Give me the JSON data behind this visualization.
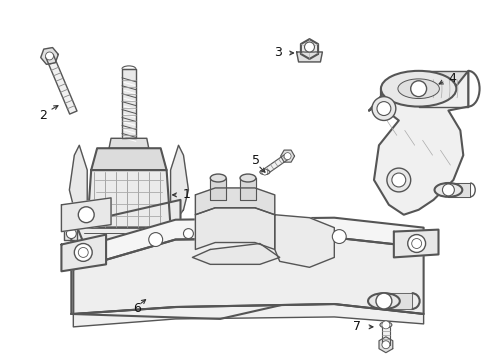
{
  "bg_color": "#ffffff",
  "line_color": "#555555",
  "label_color": "#111111",
  "lw": 1.0,
  "lw_thick": 1.5,
  "figsize": [
    4.9,
    3.6
  ],
  "dpi": 100,
  "xlim": [
    0,
    490
  ],
  "ylim": [
    0,
    360
  ]
}
